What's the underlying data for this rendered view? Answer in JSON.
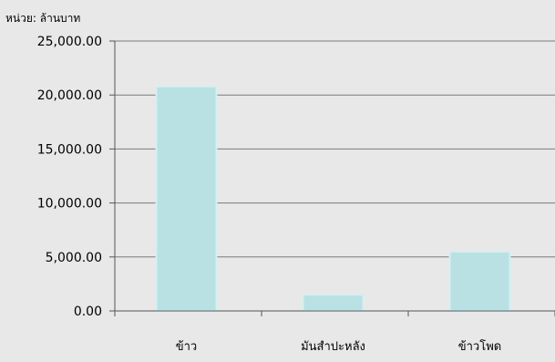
{
  "chart_data": {
    "type": "bar",
    "unit_label": "หน่วย: ล้านบาท",
    "categories": [
      "ข้าว",
      "มันสำปะหลัง",
      "ข้าวโพด"
    ],
    "values": [
      20800,
      1500,
      5500
    ],
    "ylim": [
      0,
      25000
    ],
    "yticks": [
      0,
      5000,
      10000,
      15000,
      20000,
      25000
    ],
    "ytick_labels": [
      "0.00",
      "5,000.00",
      "10,000.00",
      "15,000.00",
      "20,000.00",
      "25,000.00"
    ],
    "grid": true,
    "legend": "none"
  },
  "colors": {
    "background": "#e8e8e8",
    "bar_fill": "#b9e1e4",
    "bar_stroke": "#d4f0f2",
    "gridline": "#7a7a7a",
    "axis": "#555555"
  }
}
